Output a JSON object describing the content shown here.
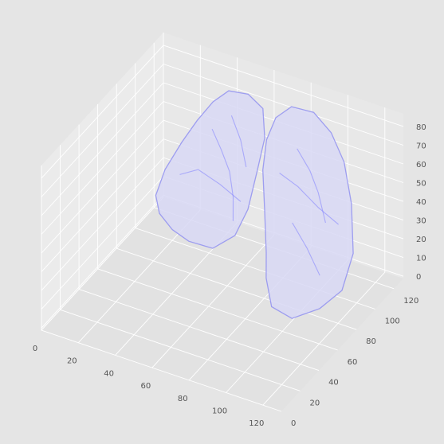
{
  "chart_data": {
    "type": "3d-surface",
    "title": "",
    "xlabel": "",
    "ylabel": "",
    "zlabel": "",
    "x_ticks": [
      0,
      20,
      40,
      60,
      80,
      100,
      120
    ],
    "y_ticks": [
      0,
      20,
      40,
      60,
      80,
      100,
      120
    ],
    "z_ticks": [
      0,
      10,
      20,
      30,
      40,
      50,
      60,
      70,
      80
    ],
    "xlim": [
      0,
      130
    ],
    "ylim": [
      0,
      130
    ],
    "zlim": [
      0,
      88
    ],
    "grid": true,
    "style": "ggplot",
    "series": [
      {
        "kind": "mesh",
        "color": "#7f7fff",
        "alpha": 0.25,
        "objects": [
          "left-lung",
          "right-lung"
        ]
      }
    ]
  },
  "colors": {
    "background": "#e5e5e5",
    "pane_left": "#ebebeb",
    "pane_back": "#e8e8e8",
    "pane_floor": "#e2e2e2",
    "grid": "#ffffff",
    "tick_label": "#555555",
    "mesh_fill": "#d8d8f4",
    "mesh_edge": "#8c8cf0"
  },
  "icons": []
}
